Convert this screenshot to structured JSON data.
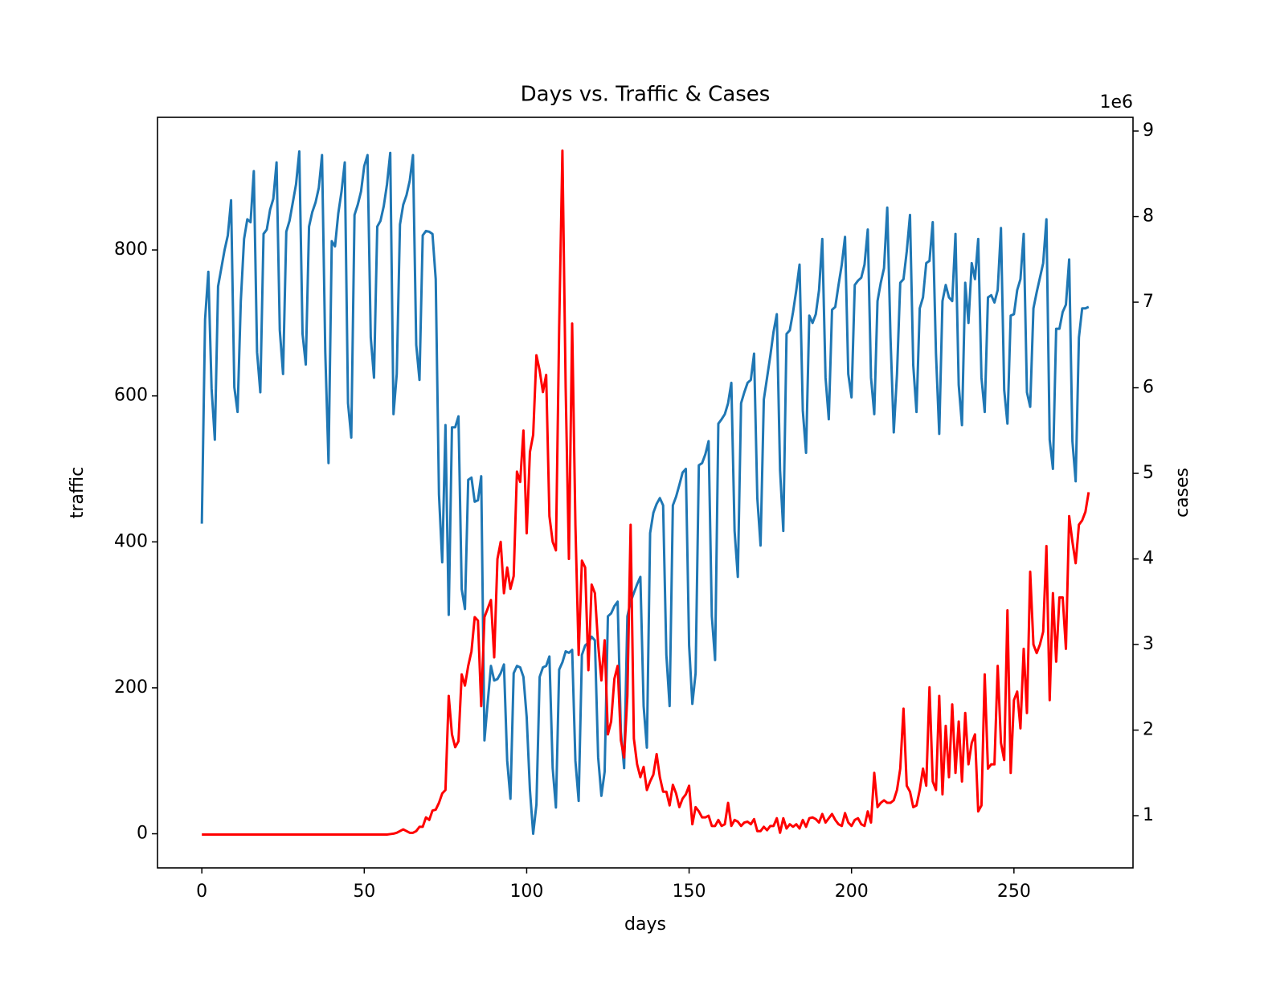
{
  "chart_data": {
    "type": "line",
    "title": "Days vs. Traffic & Cases",
    "x_label": "days",
    "y_label": "traffic",
    "y2_label": "cases",
    "y2_offset_label": "1e6",
    "x": [
      0,
      1,
      2,
      3,
      4,
      5,
      6,
      7,
      8,
      9,
      10,
      11,
      12,
      13,
      14,
      15,
      16,
      17,
      18,
      19,
      20,
      21,
      22,
      23,
      24,
      25,
      26,
      27,
      28,
      29,
      30,
      31,
      32,
      33,
      34,
      35,
      36,
      37,
      38,
      39,
      40,
      41,
      42,
      43,
      44,
      45,
      46,
      47,
      48,
      49,
      50,
      51,
      52,
      53,
      54,
      55,
      56,
      57,
      58,
      59,
      60,
      61,
      62,
      63,
      64,
      65,
      66,
      67,
      68,
      69,
      70,
      71,
      72,
      73,
      74,
      75,
      76,
      77,
      78,
      79,
      80,
      81,
      82,
      83,
      84,
      85,
      86,
      87,
      88,
      89,
      90,
      91,
      92,
      93,
      94,
      95,
      96,
      97,
      98,
      99,
      100,
      101,
      102,
      103,
      104,
      105,
      106,
      107,
      108,
      109,
      110,
      111,
      112,
      113,
      114,
      115,
      116,
      117,
      118,
      119,
      120,
      121,
      122,
      123,
      124,
      125,
      126,
      127,
      128,
      129,
      130,
      131,
      132,
      133,
      134,
      135,
      136,
      137,
      138,
      139,
      140,
      141,
      142,
      143,
      144,
      145,
      146,
      147,
      148,
      149,
      150,
      151,
      152,
      153,
      154,
      155,
      156,
      157,
      158,
      159,
      160,
      161,
      162,
      163,
      164,
      165,
      166,
      167,
      168,
      169,
      170,
      171,
      172,
      173,
      174,
      175,
      176,
      177,
      178,
      179,
      180,
      181,
      182,
      183,
      184,
      185,
      186,
      187,
      188,
      189,
      190,
      191,
      192,
      193,
      194,
      195,
      196,
      197,
      198,
      199,
      200,
      201,
      202,
      203,
      204,
      205,
      206,
      207,
      208,
      209,
      210,
      211,
      212,
      213,
      214,
      215,
      216,
      217,
      218,
      219,
      220,
      221,
      222,
      223,
      224,
      225,
      226,
      227,
      228,
      229,
      230,
      231,
      232,
      233,
      234,
      235,
      236,
      237,
      238,
      239,
      240,
      241,
      242,
      243,
      244,
      245,
      246,
      247,
      248,
      249,
      250,
      251,
      252,
      253,
      254,
      255,
      256,
      257,
      258,
      259,
      260,
      261,
      262,
      263,
      264,
      265,
      266,
      267,
      268,
      269,
      270,
      271,
      272,
      273
    ],
    "series": [
      {
        "name": "traffic",
        "color": "#1f77b4",
        "axis": "y",
        "values": [
          425,
          705,
          770,
          610,
          540,
          750,
          775,
          800,
          820,
          868,
          612,
          578,
          730,
          815,
          842,
          838,
          908,
          660,
          605,
          822,
          828,
          855,
          870,
          920,
          690,
          630,
          825,
          840,
          865,
          890,
          935,
          685,
          643,
          832,
          852,
          865,
          885,
          930,
          660,
          508,
          812,
          805,
          850,
          880,
          920,
          590,
          543,
          848,
          862,
          880,
          915,
          930,
          680,
          625,
          832,
          840,
          860,
          890,
          933,
          575,
          630,
          835,
          862,
          875,
          895,
          930,
          670,
          622,
          820,
          826,
          825,
          822,
          760,
          465,
          372,
          560,
          300,
          557,
          557,
          572,
          335,
          308,
          485,
          488,
          455,
          457,
          490,
          128,
          180,
          230,
          210,
          212,
          220,
          232,
          100,
          48,
          220,
          230,
          228,
          215,
          160,
          60,
          0,
          40,
          215,
          228,
          230,
          243,
          90,
          36,
          225,
          235,
          250,
          248,
          252,
          100,
          45,
          245,
          258,
          262,
          270,
          265,
          105,
          52,
          85,
          298,
          302,
          312,
          318,
          140,
          90,
          298,
          318,
          330,
          342,
          352,
          175,
          118,
          412,
          440,
          452,
          460,
          450,
          245,
          175,
          450,
          462,
          478,
          495,
          500,
          258,
          178,
          220,
          505,
          508,
          520,
          538,
          298,
          238,
          562,
          568,
          575,
          590,
          618,
          415,
          352,
          590,
          605,
          618,
          622,
          658,
          460,
          395,
          595,
          625,
          655,
          688,
          712,
          498,
          415,
          685,
          690,
          715,
          745,
          780,
          580,
          522,
          710,
          700,
          712,
          745,
          815,
          625,
          568,
          718,
          722,
          752,
          780,
          818,
          630,
          598,
          752,
          758,
          762,
          780,
          828,
          625,
          575,
          730,
          755,
          775,
          858,
          680,
          550,
          630,
          755,
          760,
          798,
          848,
          642,
          578,
          720,
          735,
          782,
          785,
          838,
          658,
          548,
          730,
          752,
          735,
          730,
          822,
          615,
          560,
          755,
          700,
          782,
          760,
          815,
          625,
          578,
          735,
          738,
          728,
          745,
          830,
          608,
          562,
          710,
          712,
          745,
          760,
          822,
          605,
          585,
          720,
          742,
          762,
          782,
          842,
          540,
          500,
          692,
          692,
          715,
          725,
          787,
          538,
          483,
          680,
          720,
          720,
          722
        ]
      },
      {
        "name": "cases",
        "color": "#ff0000",
        "axis": "y2",
        "values": [
          780000,
          780000,
          780000,
          780000,
          780000,
          780000,
          780000,
          780000,
          780000,
          780000,
          780000,
          780000,
          780000,
          780000,
          780000,
          780000,
          780000,
          780000,
          780000,
          780000,
          780000,
          780000,
          780000,
          780000,
          780000,
          780000,
          780000,
          780000,
          780000,
          780000,
          780000,
          780000,
          780000,
          780000,
          780000,
          780000,
          780000,
          780000,
          780000,
          780000,
          780000,
          780000,
          780000,
          780000,
          780000,
          780000,
          780000,
          780000,
          780000,
          780000,
          780000,
          780000,
          780000,
          780000,
          780000,
          780000,
          780000,
          780000,
          785000,
          790000,
          800000,
          820000,
          840000,
          820000,
          800000,
          800000,
          820000,
          870000,
          870000,
          980000,
          950000,
          1060000,
          1070000,
          1150000,
          1260000,
          1300000,
          2400000,
          1950000,
          1800000,
          1870000,
          2650000,
          2520000,
          2750000,
          2920000,
          3320000,
          3280000,
          2280000,
          3320000,
          3420000,
          3520000,
          2850000,
          4000000,
          4200000,
          3600000,
          3900000,
          3650000,
          3800000,
          5020000,
          4900000,
          5500000,
          4300000,
          5250000,
          5450000,
          6380000,
          6200000,
          5950000,
          6150000,
          4500000,
          4200000,
          4100000,
          6700000,
          8770000,
          6000000,
          4000000,
          6750000,
          4400000,
          2880000,
          3980000,
          3900000,
          2700000,
          3700000,
          3600000,
          3000000,
          2580000,
          3050000,
          1950000,
          2100000,
          2600000,
          2750000,
          1880000,
          1680000,
          2400000,
          4400000,
          1900000,
          1600000,
          1450000,
          1570000,
          1300000,
          1400000,
          1480000,
          1720000,
          1450000,
          1280000,
          1280000,
          1120000,
          1360000,
          1260000,
          1100000,
          1200000,
          1250000,
          1350000,
          900000,
          1100000,
          1050000,
          980000,
          980000,
          1000000,
          880000,
          880000,
          950000,
          880000,
          900000,
          1150000,
          880000,
          950000,
          930000,
          880000,
          920000,
          930000,
          900000,
          960000,
          820000,
          820000,
          870000,
          830000,
          880000,
          880000,
          970000,
          800000,
          970000,
          850000,
          900000,
          870000,
          900000,
          850000,
          950000,
          870000,
          970000,
          980000,
          960000,
          920000,
          1020000,
          920000,
          970000,
          1020000,
          950000,
          900000,
          880000,
          1030000,
          920000,
          880000,
          950000,
          970000,
          900000,
          880000,
          1050000,
          920000,
          1500000,
          1100000,
          1150000,
          1180000,
          1150000,
          1150000,
          1180000,
          1300000,
          1550000,
          2250000,
          1350000,
          1280000,
          1100000,
          1120000,
          1300000,
          1550000,
          1350000,
          2500000,
          1400000,
          1300000,
          2400000,
          1250000,
          2050000,
          1450000,
          2300000,
          1500000,
          2100000,
          1400000,
          2200000,
          1600000,
          1850000,
          1950000,
          1050000,
          1120000,
          2650000,
          1550000,
          1600000,
          1600000,
          2750000,
          1850000,
          1650000,
          3400000,
          1500000,
          2350000,
          2450000,
          2020000,
          2950000,
          2200000,
          3850000,
          3000000,
          2900000,
          3000000,
          3150000,
          4150000,
          2350000,
          3600000,
          2800000,
          3550000,
          3550000,
          2950000,
          4500000,
          4200000,
          3950000,
          4400000,
          4450000,
          4550000,
          4780000
        ]
      }
    ],
    "xlim": [
      -13.65,
      286.65
    ],
    "xticks": [
      0,
      50,
      100,
      150,
      200,
      250
    ],
    "ylim": [
      -46.75,
      981.75
    ],
    "yticks": [
      0,
      200,
      400,
      600,
      800
    ],
    "y2lim": [
      390000,
      9160000
    ],
    "y2ticks": [
      {
        "value": 1000000,
        "label": "1"
      },
      {
        "value": 2000000,
        "label": "2"
      },
      {
        "value": 3000000,
        "label": "3"
      },
      {
        "value": 4000000,
        "label": "4"
      },
      {
        "value": 5000000,
        "label": "5"
      },
      {
        "value": 6000000,
        "label": "6"
      },
      {
        "value": 7000000,
        "label": "7"
      },
      {
        "value": 8000000,
        "label": "8"
      },
      {
        "value": 9000000,
        "label": "9"
      }
    ],
    "grid": false
  }
}
